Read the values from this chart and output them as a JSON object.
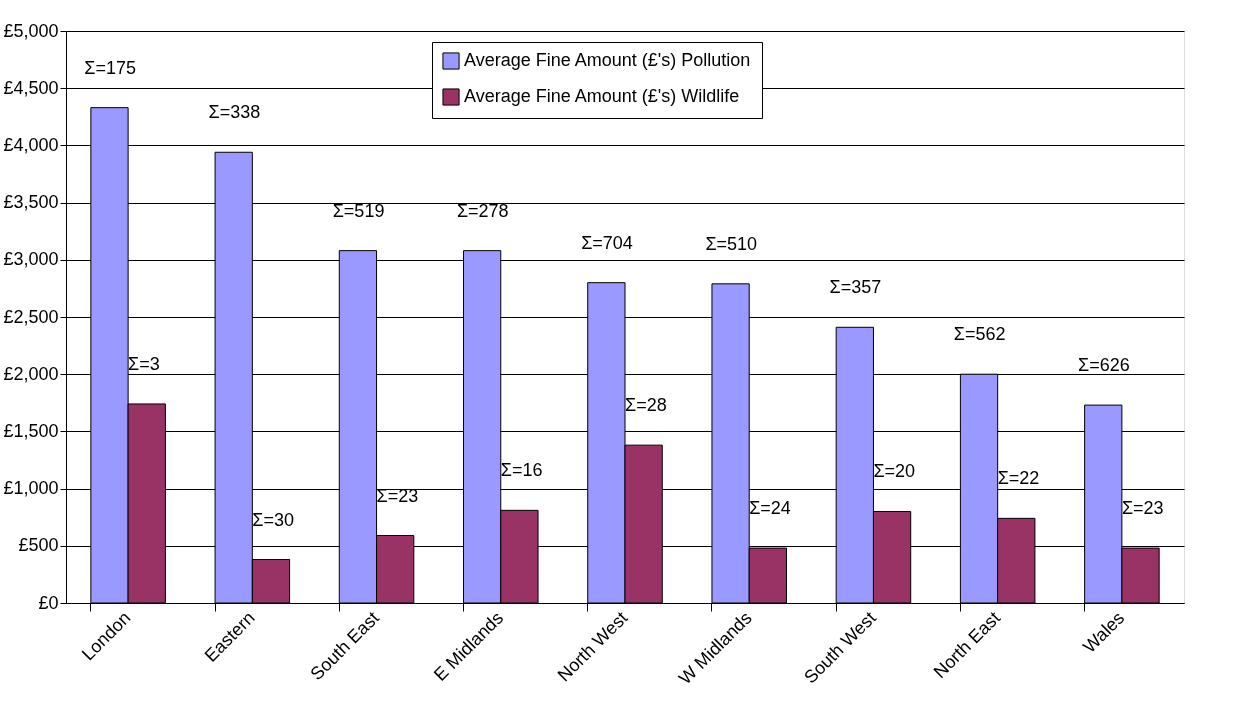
{
  "chart_data": {
    "type": "bar",
    "categories": [
      "London",
      "Eastern",
      "South East",
      "E Midlands",
      "North West",
      "W Midlands",
      "South West",
      "North East",
      "Wales"
    ],
    "series": [
      {
        "name": "Average Fine Amount (£'s) Pollution",
        "color": "#9999ff",
        "values": [
          4330,
          3940,
          3080,
          3080,
          2800,
          2790,
          2410,
          2000,
          1730
        ]
      },
      {
        "name": "Average Fine Amount (£'s) Wildlife",
        "color": "#993366",
        "values": [
          1740,
          380,
          590,
          810,
          1380,
          480,
          800,
          740,
          480
        ]
      }
    ],
    "ylim": [
      0,
      5000
    ],
    "yticks": [
      {
        "value": 0,
        "label": "£0"
      },
      {
        "value": 500,
        "label": "£500"
      },
      {
        "value": 1000,
        "label": "£1,000"
      },
      {
        "value": 1500,
        "label": "£1,500"
      },
      {
        "value": 2000,
        "label": "£2,000"
      },
      {
        "value": 2500,
        "label": "£2,500"
      },
      {
        "value": 3000,
        "label": "£3,000"
      },
      {
        "value": 3500,
        "label": "£3,500"
      },
      {
        "value": 4000,
        "label": "£4,000"
      },
      {
        "value": 4500,
        "label": "£4,500"
      },
      {
        "value": 5000,
        "label": "£5,000"
      }
    ],
    "grid": "y",
    "legend": "top",
    "annotations": [
      {
        "text": "Σ=175",
        "x": "London",
        "y": 4330
      },
      {
        "text": "Σ=338",
        "x": "Eastern",
        "y": 3940
      },
      {
        "text": "Σ=519",
        "x": "South East",
        "y": 3080
      },
      {
        "text": "Σ=278",
        "x": "E Midlands",
        "y": 3080
      },
      {
        "text": "Σ=704",
        "x": "North West",
        "y": 2800
      },
      {
        "text": "Σ=510",
        "x": "W Midlands",
        "y": 2790
      },
      {
        "text": "Σ=357",
        "x": "South West",
        "y": 2410
      },
      {
        "text": "Σ=562",
        "x": "North East",
        "y": 2000
      },
      {
        "text": "Σ=626",
        "x": "Wales",
        "y": 1730
      },
      {
        "text": "Σ=3",
        "x": "London",
        "y": 1740
      },
      {
        "text": "Σ=30",
        "x": "Eastern",
        "y": 380
      },
      {
        "text": "Σ=23",
        "x": "South East",
        "y": 590
      },
      {
        "text": "Σ=16",
        "x": "E Midlands",
        "y": 810
      },
      {
        "text": "Σ=28",
        "x": "North West",
        "y": 1380
      },
      {
        "text": "Σ=24",
        "x": "W Midlands",
        "y": 480
      },
      {
        "text": "Σ=20",
        "x": "South West",
        "y": 800
      },
      {
        "text": "Σ=22",
        "x": "North East",
        "y": 740
      },
      {
        "text": "Σ=23",
        "x": "Wales",
        "y": 480
      }
    ]
  }
}
